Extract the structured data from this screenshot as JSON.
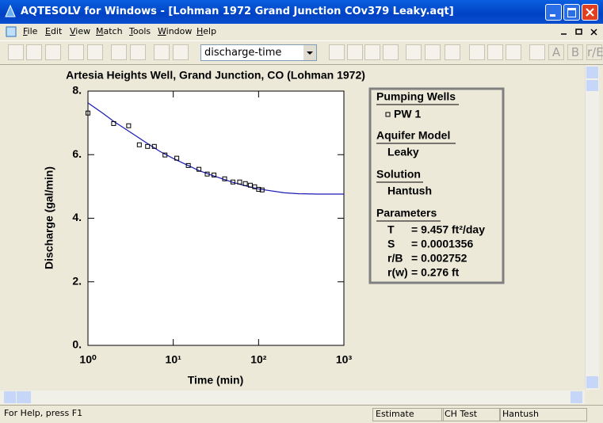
{
  "window": {
    "title": "AQTESOLV for Windows - [Lohman 1972 Grand Junction COv379 Leaky.aqt]"
  },
  "menu": [
    "File",
    "Edit",
    "View",
    "Match",
    "Tools",
    "Window",
    "Help"
  ],
  "toolbar": {
    "view_select": "discharge-time",
    "buttons": [
      "A",
      "B",
      "r/E"
    ]
  },
  "chart_data": {
    "type": "scatter",
    "title": "Artesia Heights Well, Grand Junction, CO (Lohman 1972)",
    "x_label": "Time (min)",
    "y_label": "Discharge (gal/min)",
    "xscale": "log",
    "xlim": [
      1,
      1000
    ],
    "ylim": [
      0,
      8
    ],
    "xticks": [
      {
        "value": 1,
        "label": "10⁰"
      },
      {
        "value": 10,
        "label": "10¹"
      },
      {
        "value": 100,
        "label": "10²"
      },
      {
        "value": 1000,
        "label": "10³"
      }
    ],
    "yticks": [
      {
        "value": 0,
        "label": "0."
      },
      {
        "value": 2,
        "label": "2."
      },
      {
        "value": 4,
        "label": "4."
      },
      {
        "value": 6,
        "label": "6."
      },
      {
        "value": 8,
        "label": "8."
      }
    ],
    "series": [
      {
        "name": "PW 1",
        "color": "#000000",
        "marker": "square",
        "x": [
          1,
          2,
          3,
          4,
          5,
          6,
          8,
          11,
          15,
          20,
          25,
          30,
          40,
          50,
          60,
          70,
          80,
          90,
          100,
          110
        ],
        "values": [
          7.31,
          6.98,
          6.91,
          6.31,
          6.26,
          6.26,
          5.99,
          5.89,
          5.66,
          5.54,
          5.39,
          5.36,
          5.24,
          5.14,
          5.14,
          5.09,
          5.04,
          4.99,
          4.91,
          4.89
        ]
      }
    ],
    "curve": {
      "color": "#1a1ab4",
      "x": [
        1,
        1.5,
        2,
        3,
        5,
        7,
        10,
        20,
        30,
        50,
        70,
        100,
        200,
        300,
        500,
        1000
      ],
      "values": [
        7.63,
        7.3,
        7.05,
        6.74,
        6.35,
        6.1,
        5.88,
        5.5,
        5.33,
        5.13,
        5.02,
        4.92,
        4.8,
        4.77,
        4.76,
        4.76
      ]
    },
    "legend_title": "Pumping Wells",
    "panel": [
      {
        "heading": "Aquifer Model",
        "text": "Leaky"
      },
      {
        "heading": "Solution",
        "text": "Hantush"
      }
    ],
    "parameters": {
      "heading": "Parameters",
      "rows": [
        {
          "name": "T",
          "value": "= 9.457 ft²/day"
        },
        {
          "name": "S",
          "value": "= 0.0001356"
        },
        {
          "name": "r/B",
          "value": "= 0.002752"
        },
        {
          "name": "r(w)",
          "value": "= 0.276 ft"
        }
      ]
    }
  },
  "status_bar": [
    "For Help, press F1",
    "Estimate",
    "CH Test",
    "Hantush"
  ]
}
